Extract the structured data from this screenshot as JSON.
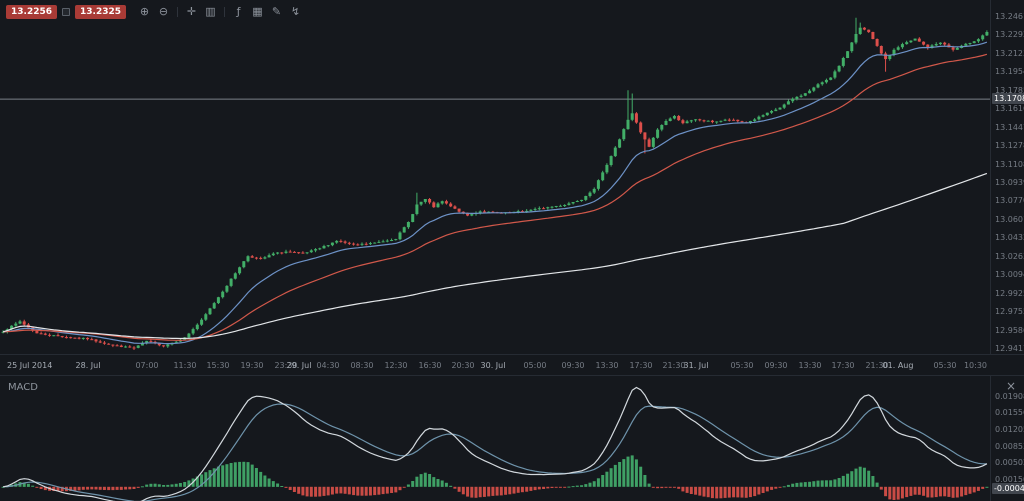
{
  "toolbar": {
    "bid_badge": "13.2256",
    "ask_badge": "13.2325",
    "icons": [
      {
        "name": "zoom-in",
        "glyph": "⊕"
      },
      {
        "name": "zoom-out",
        "glyph": "⊖"
      },
      {
        "name": "separator",
        "glyph": ""
      },
      {
        "name": "crosshair",
        "glyph": "✛"
      },
      {
        "name": "chart-type",
        "glyph": "▥"
      },
      {
        "name": "separator",
        "glyph": ""
      },
      {
        "name": "indicators",
        "glyph": "ƒ"
      },
      {
        "name": "grid-settings",
        "glyph": "▦"
      },
      {
        "name": "annotations",
        "glyph": "✎"
      },
      {
        "name": "quick-trade",
        "glyph": "↯"
      }
    ]
  },
  "price_axis": {
    "labels": [
      "13.2461",
      "13.2292",
      "13.2123",
      "13.1954",
      "13.1785",
      "13.1616",
      "13.1447",
      "13.1278",
      "13.1108",
      "13.0939",
      "13.0770",
      "13.0601",
      "13.0432",
      "13.0263",
      "13.0094",
      "12.9925",
      "12.9755",
      "12.9586",
      "12.9417"
    ],
    "line_badge": "13.1708"
  },
  "macd_panel": {
    "title": "MACD",
    "close_label": "×",
    "axis_labels": [
      "0.01908",
      "0.01556",
      "0.01205",
      "0.00853",
      "0.00502",
      "0.00150"
    ],
    "current_badge": "-0.00049"
  },
  "colors": {
    "background": "#15181d",
    "up": "#42ae68",
    "down": "#dd4f4b",
    "hist_up": "#3fa065",
    "hist_down": "#c94b45",
    "macd_line": "#d3d9de",
    "signal_line": "#6e93ab",
    "hline": "#8d939b",
    "axis_text": "#767c85"
  },
  "chart_data": {
    "type": "candlestick",
    "x_unit": "30min",
    "n_candles": 234,
    "seed": 7,
    "noise": 0.0012,
    "price_scale": {
      "min": 12.9371,
      "max": 13.2617
    },
    "horizontal_line": 13.1708,
    "price_path": [
      [
        0,
        12.958
      ],
      [
        4,
        12.967
      ],
      [
        8,
        12.956
      ],
      [
        14,
        12.953
      ],
      [
        20,
        12.951
      ],
      [
        26,
        12.945
      ],
      [
        31,
        12.9425
      ],
      [
        34,
        12.949
      ],
      [
        38,
        12.9445
      ],
      [
        43,
        12.952
      ],
      [
        47,
        12.968
      ],
      [
        50,
        12.984
      ],
      [
        53,
        13.0
      ],
      [
        56,
        13.017
      ],
      [
        58,
        13.027
      ],
      [
        61,
        13.024
      ],
      [
        64,
        13.029
      ],
      [
        67,
        13.031
      ],
      [
        71,
        13.029
      ],
      [
        75,
        13.034
      ],
      [
        79,
        13.041
      ],
      [
        83,
        13.037
      ],
      [
        88,
        13.039
      ],
      [
        93,
        13.043
      ],
      [
        96,
        13.058
      ],
      [
        98,
        13.074
      ],
      [
        100,
        13.079
      ],
      [
        102,
        13.072
      ],
      [
        104,
        13.077
      ],
      [
        107,
        13.07
      ],
      [
        110,
        13.064
      ],
      [
        113,
        13.068
      ],
      [
        118,
        13.066
      ],
      [
        123,
        13.068
      ],
      [
        128,
        13.071
      ],
      [
        133,
        13.074
      ],
      [
        137,
        13.079
      ],
      [
        140,
        13.089
      ],
      [
        142,
        13.103
      ],
      [
        144,
        13.119
      ],
      [
        146,
        13.134
      ],
      [
        148,
        13.152
      ],
      [
        149,
        13.158
      ],
      [
        151,
        13.14
      ],
      [
        153,
        13.127
      ],
      [
        155,
        13.143
      ],
      [
        157,
        13.151
      ],
      [
        159,
        13.155
      ],
      [
        161,
        13.149
      ],
      [
        164,
        13.152
      ],
      [
        168,
        13.15
      ],
      [
        172,
        13.152
      ],
      [
        176,
        13.149
      ],
      [
        180,
        13.156
      ],
      [
        184,
        13.163
      ],
      [
        187,
        13.171
      ],
      [
        190,
        13.176
      ],
      [
        193,
        13.184
      ],
      [
        196,
        13.191
      ],
      [
        198,
        13.201
      ],
      [
        200,
        13.215
      ],
      [
        202,
        13.231
      ],
      [
        203,
        13.236
      ],
      [
        205,
        13.232
      ],
      [
        207,
        13.219
      ],
      [
        209,
        13.207
      ],
      [
        211,
        13.216
      ],
      [
        213,
        13.221
      ],
      [
        216,
        13.226
      ],
      [
        219,
        13.218
      ],
      [
        222,
        13.223
      ],
      [
        225,
        13.216
      ],
      [
        228,
        13.221
      ],
      [
        231,
        13.226
      ],
      [
        233,
        13.2325
      ]
    ],
    "wick_spikes": [
      {
        "i": 31,
        "low": 12.9408
      },
      {
        "i": 98,
        "high": 13.085
      },
      {
        "i": 148,
        "high": 13.179
      },
      {
        "i": 149,
        "high": 13.176
      },
      {
        "i": 152,
        "low": 13.121
      },
      {
        "i": 202,
        "high": 13.2455
      },
      {
        "i": 203,
        "high": 13.241
      },
      {
        "i": 209,
        "low": 13.196
      }
    ],
    "moving_averages": [
      {
        "name": "ma-fast",
        "type": "ema",
        "period": 16,
        "color": "#6d92c7"
      },
      {
        "name": "ma-medium",
        "type": "ema",
        "period": 40,
        "color": "#d1584a"
      },
      {
        "name": "ma-slow",
        "type": "sma",
        "period": 200,
        "color": "#e3e6e9"
      }
    ],
    "x_ticks": [
      [
        1,
        "25 Jul 2014"
      ],
      [
        20,
        "28. Jul"
      ],
      [
        34,
        "07:00"
      ],
      [
        43,
        "11:30"
      ],
      [
        51,
        "15:30"
      ],
      [
        59,
        "19:30"
      ],
      [
        67,
        "23:30"
      ],
      [
        70,
        "29. Jul"
      ],
      [
        77,
        "04:30"
      ],
      [
        85,
        "08:30"
      ],
      [
        93,
        "12:30"
      ],
      [
        101,
        "16:30"
      ],
      [
        109,
        "20:30"
      ],
      [
        116,
        "30. Jul"
      ],
      [
        126,
        "05:00"
      ],
      [
        135,
        "09:30"
      ],
      [
        143,
        "13:30"
      ],
      [
        151,
        "17:30"
      ],
      [
        159,
        "21:30"
      ],
      [
        164,
        "31. Jul"
      ],
      [
        175,
        "05:30"
      ],
      [
        183,
        "09:30"
      ],
      [
        191,
        "13:30"
      ],
      [
        199,
        "17:30"
      ],
      [
        207,
        "21:30"
      ],
      [
        212,
        "01. Aug"
      ],
      [
        223,
        "05:30"
      ],
      [
        233,
        "10:30"
      ]
    ],
    "indicator": {
      "type": "macd",
      "fast": 12,
      "slow": 26,
      "signal": 9,
      "scale": {
        "min": -0.003,
        "max": 0.0235
      }
    }
  }
}
